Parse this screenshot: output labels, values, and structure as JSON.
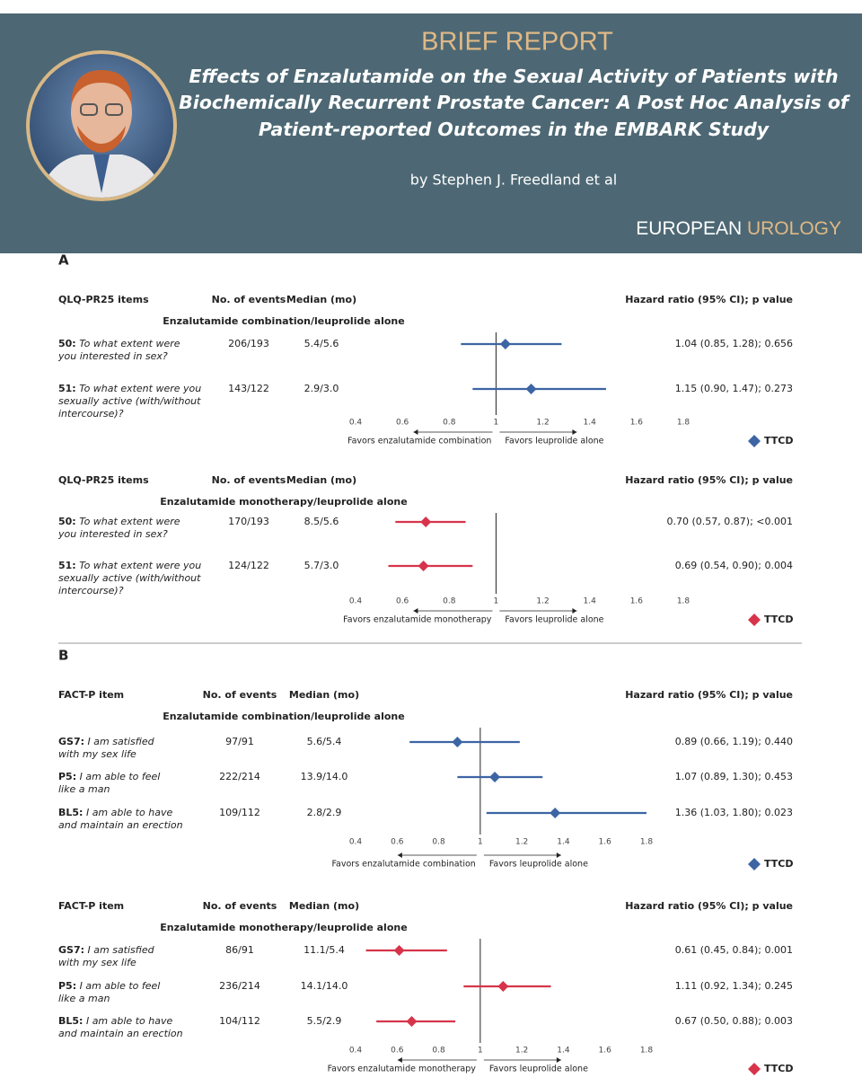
{
  "header": {
    "kicker": "BRIEF REPORT",
    "title_lines": [
      "Effects of Enzalutamide on the Sexual Activity of Patients with",
      "Biochemically Recurrent Prostate Cancer: A Post Hoc Analysis of",
      "Patient-reported Outcomes in the EMBARK Study"
    ],
    "byline": "by Stephen J. Freedland et al",
    "journal_1": "EUROPEAN",
    "journal_2": "UROLOGY"
  },
  "chart_data": [
    {
      "type": "forest",
      "section": "A",
      "item_header": "QLQ-PR25 items",
      "events_header": "No. of events",
      "median_header": "Median (mo)",
      "hr_header": "Hazard ratio (95% CI); p value",
      "comparison": "Enzalutamide combination/leuprolide alone",
      "rows": [
        {
          "id": "50:",
          "lines": [
            "To what extent were",
            "you interested in sex?"
          ],
          "events": "206/193",
          "median": "5.4/5.6"
        },
        {
          "id": "51:",
          "lines": [
            "To what extent were you",
            "sexually active (with/without",
            "intercourse)?"
          ],
          "events": "143/122",
          "median": "2.9/3.0"
        }
      ],
      "values": [
        1.04,
        1.15
      ],
      "ci_low": [
        0.85,
        0.9
      ],
      "ci_high": [
        1.28,
        1.47
      ],
      "value_labels": [
        "1.04 (0.85, 1.28); 0.656",
        "1.15 (0.90, 1.47); 0.273"
      ],
      "xlim": [
        0.4,
        1.8
      ],
      "xticks": [
        0.4,
        0.6,
        0.8,
        1,
        1.2,
        1.4,
        1.6,
        1.8
      ],
      "reference": 1,
      "favors_left": "Favors enzalutamide combination",
      "favors_right": "Favors leuprolide alone",
      "legend": "TTCD",
      "color": "#3d65a3"
    },
    {
      "type": "forest",
      "item_header": "QLQ-PR25 items",
      "events_header": "No. of events",
      "median_header": "Median (mo)",
      "hr_header": "Hazard ratio (95% CI); p value",
      "comparison": "Enzalutamide monotherapy/leuprolide alone",
      "rows": [
        {
          "id": "50:",
          "lines": [
            "To what extent were",
            "you interested in sex?"
          ],
          "events": "170/193",
          "median": "8.5/5.6"
        },
        {
          "id": "51:",
          "lines": [
            "To what extent were you",
            "sexually active (with/without",
            "intercourse)?"
          ],
          "events": "124/122",
          "median": "5.7/3.0"
        }
      ],
      "values": [
        0.7,
        0.69
      ],
      "ci_low": [
        0.57,
        0.54
      ],
      "ci_high": [
        0.87,
        0.9
      ],
      "value_labels": [
        "0.70 (0.57, 0.87); <0.001",
        "0.69 (0.54, 0.90); 0.004"
      ],
      "xlim": [
        0.4,
        1.8
      ],
      "xticks": [
        0.4,
        0.6,
        0.8,
        1,
        1.2,
        1.4,
        1.6,
        1.8
      ],
      "reference": 1,
      "favors_left": "Favors enzalutamide monotherapy",
      "favors_right": "Favors leuprolide alone",
      "legend": "TTCD",
      "color": "#d7344b"
    },
    {
      "type": "forest",
      "section": "B",
      "item_header": "FACT-P item",
      "events_header": "No. of events",
      "median_header": "Median (mo)",
      "hr_header": "Hazard ratio (95% CI); p value",
      "comparison": "Enzalutamide combination/leuprolide alone",
      "rows": [
        {
          "id": "GS7:",
          "lines": [
            "I am satisfied",
            "with my sex life"
          ],
          "events": "97/91",
          "median": "5.6/5.4"
        },
        {
          "id": "P5:",
          "lines": [
            "I am able to feel",
            "like a man"
          ],
          "events": "222/214",
          "median": "13.9/14.0"
        },
        {
          "id": "BL5:",
          "lines": [
            "I am able to have",
            "and maintain an erection"
          ],
          "events": "109/112",
          "median": "2.8/2.9"
        }
      ],
      "values": [
        0.89,
        1.07,
        1.36
      ],
      "ci_low": [
        0.66,
        0.89,
        1.03
      ],
      "ci_high": [
        1.19,
        1.3,
        1.8
      ],
      "value_labels": [
        "0.89 (0.66, 1.19); 0.440",
        "1.07 (0.89, 1.30); 0.453",
        "1.36 (1.03, 1.80); 0.023"
      ],
      "xlim": [
        0.4,
        1.8
      ],
      "xticks": [
        0.4,
        0.6,
        0.8,
        1,
        1.2,
        1.4,
        1.6,
        1.8
      ],
      "reference": 1,
      "favors_left": "Favors enzalutamide combination",
      "favors_right": "Favors leuprolide alone",
      "legend": "TTCD",
      "color": "#3d65a3"
    },
    {
      "type": "forest",
      "item_header": "FACT-P item",
      "events_header": "No. of events",
      "median_header": "Median (mo)",
      "hr_header": "Hazard ratio (95% CI); p value",
      "comparison": "Enzalutamide monotherapy/leuprolide alone",
      "rows": [
        {
          "id": "GS7:",
          "lines": [
            "I am satisfied",
            "with my sex life"
          ],
          "events": "86/91",
          "median": "11.1/5.4"
        },
        {
          "id": "P5:",
          "lines": [
            "I am able to feel",
            "like a man"
          ],
          "events": "236/214",
          "median": "14.1/14.0"
        },
        {
          "id": "BL5:",
          "lines": [
            "I am able to have",
            "and maintain an erection"
          ],
          "events": "104/112",
          "median": "5.5/2.9"
        }
      ],
      "values": [
        0.61,
        1.11,
        0.67
      ],
      "ci_low": [
        0.45,
        0.92,
        0.5
      ],
      "ci_high": [
        0.84,
        1.34,
        0.88
      ],
      "value_labels": [
        "0.61 (0.45, 0.84); 0.001",
        "1.11 (0.92, 1.34); 0.245",
        "0.67 (0.50, 0.88); 0.003"
      ],
      "xlim": [
        0.4,
        1.8
      ],
      "xticks": [
        0.4,
        0.6,
        0.8,
        1,
        1.2,
        1.4,
        1.6,
        1.8
      ],
      "reference": 1,
      "favors_left": "Favors enzalutamide monotherapy",
      "favors_right": "Favors leuprolide alone",
      "legend": "TTCD",
      "color": "#d7344b"
    }
  ]
}
